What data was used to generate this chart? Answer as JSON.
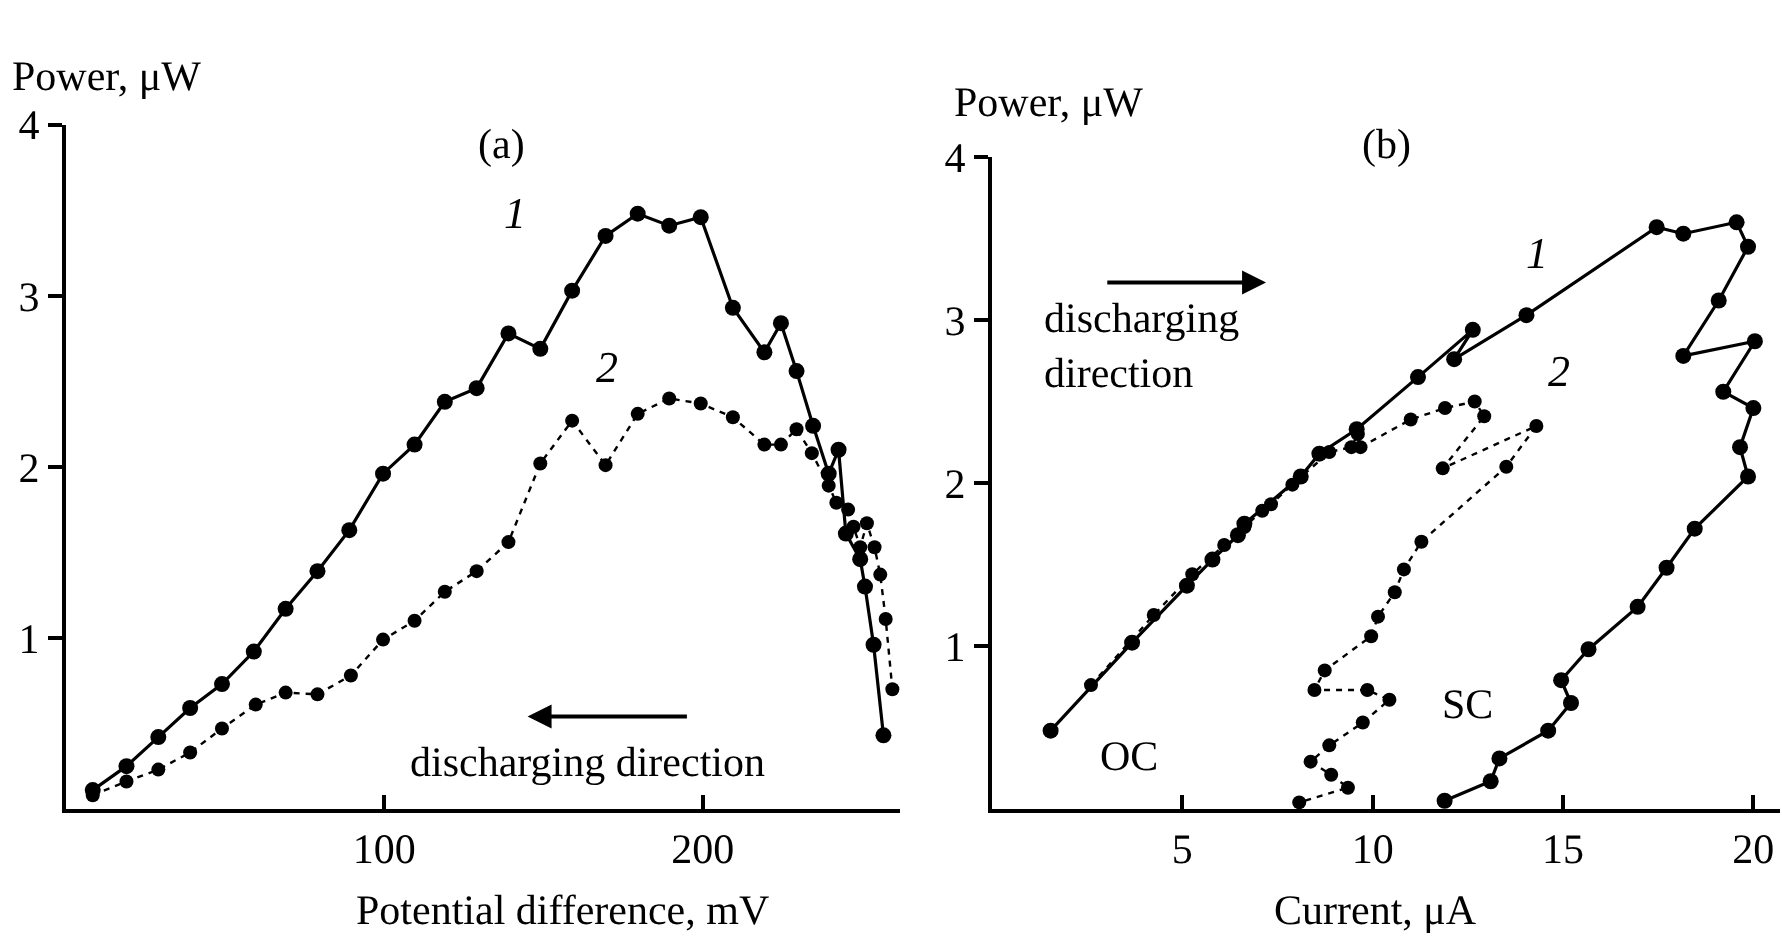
{
  "chart_data": [
    {
      "type": "line",
      "title": "(a)",
      "xlabel": "Potential difference, mV",
      "ylabel": "Power, μW",
      "xlim": [
        0,
        262
      ],
      "ylim": [
        0,
        4
      ],
      "xticks": [
        100,
        200
      ],
      "yticks": [
        1,
        2,
        3,
        4
      ],
      "grid": false,
      "marker": "circle",
      "annotations": [
        "discharging direction"
      ],
      "series": [
        {
          "name": "1",
          "color": "#000000",
          "line_style": "solid",
          "x": [
            8.4,
            19,
            29,
            39,
            49,
            59,
            69,
            79,
            89,
            99.6,
            109.5,
            119,
            129,
            139,
            149,
            159,
            169.5,
            179.6,
            189.5,
            199.4,
            209.5,
            219.4,
            224.6,
            229.5,
            234.7,
            239.6,
            242.7,
            245,
            249.5,
            251,
            253.7,
            256.8
          ],
          "values": [
            0.11,
            0.25,
            0.42,
            0.59,
            0.73,
            0.92,
            1.17,
            1.39,
            1.63,
            1.96,
            2.13,
            2.38,
            2.46,
            2.78,
            2.69,
            3.03,
            3.35,
            3.48,
            3.41,
            3.46,
            2.93,
            2.67,
            2.84,
            2.56,
            2.24,
            1.96,
            2.1,
            1.61,
            1.46,
            1.3,
            0.96,
            0.43
          ]
        },
        {
          "name": "2",
          "color": "#000000",
          "line_style": "dotted",
          "x": [
            8.4,
            19,
            29,
            39,
            49,
            59.6,
            69,
            79,
            89.5,
            99.6,
            109.5,
            119,
            129,
            139,
            149,
            159,
            169.5,
            179.6,
            189.5,
            199.4,
            209.5,
            219.4,
            224.6,
            229.5,
            234.3,
            239.6,
            242,
            245.7,
            247.4,
            249.5,
            251.6,
            254,
            255.8,
            257.5,
            259.6
          ],
          "values": [
            0.08,
            0.16,
            0.23,
            0.33,
            0.47,
            0.61,
            0.68,
            0.67,
            0.78,
            0.99,
            1.1,
            1.27,
            1.39,
            1.56,
            2.02,
            2.27,
            2.01,
            2.31,
            2.4,
            2.37,
            2.29,
            2.13,
            2.13,
            2.22,
            2.08,
            1.89,
            1.79,
            1.75,
            1.65,
            1.53,
            1.67,
            1.53,
            1.37,
            1.11,
            0.7
          ]
        }
      ]
    },
    {
      "type": "line",
      "title": "(b)",
      "xlabel": "Current, μA",
      "ylabel": "Power, μW",
      "xlim": [
        0,
        20.7
      ],
      "ylim": [
        0,
        4
      ],
      "xticks": [
        5,
        10,
        15,
        20
      ],
      "yticks": [
        1,
        2,
        3,
        4
      ],
      "grid": false,
      "marker": "circle",
      "annotations": [
        "discharging\ndirection",
        "OC",
        "SC"
      ],
      "series": [
        {
          "name": "1",
          "color": "#000000",
          "line_style": "solid",
          "x": [
            1.54,
            3.68,
            5.12,
            5.79,
            6.46,
            6.63,
            8.11,
            8.6,
            9.58,
            11.19,
            12.63,
            12.14,
            14.04,
            17.46,
            18.16,
            19.56,
            19.86,
            19.09,
            18.16,
            20.04,
            19.21,
            20.0,
            19.65,
            19.86,
            18.46,
            17.72,
            16.96,
            15.67,
            14.95,
            15.21,
            14.61,
            13.33,
            13.1,
            11.89
          ],
          "values": [
            0.48,
            1.02,
            1.37,
            1.53,
            1.68,
            1.75,
            2.04,
            2.18,
            2.33,
            2.65,
            2.94,
            2.76,
            3.03,
            3.57,
            3.53,
            3.6,
            3.45,
            3.12,
            2.78,
            2.87,
            2.56,
            2.46,
            2.22,
            2.04,
            1.72,
            1.48,
            1.24,
            0.98,
            0.79,
            0.65,
            0.48,
            0.31,
            0.17,
            0.05
          ]
        },
        {
          "name": "2",
          "color": "#000000",
          "line_style": "dotted",
          "x": [
            2.6,
            4.25,
            5.26,
            6.1,
            6.63,
            7.1,
            7.33,
            7.89,
            8.86,
            9.44,
            9.61,
            9.68,
            11.0,
            11.9,
            12.68,
            12.93,
            11.84,
            14.3,
            13.51,
            11.28,
            10.82,
            10.58,
            10.14,
            9.96,
            8.74,
            8.47,
            9.86,
            10.44,
            9.74,
            8.86,
            8.37,
            8.91,
            9.35,
            8.07
          ],
          "values": [
            0.76,
            1.19,
            1.44,
            1.62,
            1.73,
            1.83,
            1.87,
            1.99,
            2.19,
            2.22,
            2.3,
            2.22,
            2.39,
            2.46,
            2.5,
            2.41,
            2.09,
            2.35,
            2.1,
            1.64,
            1.47,
            1.33,
            1.18,
            1.06,
            0.85,
            0.73,
            0.73,
            0.67,
            0.53,
            0.39,
            0.29,
            0.21,
            0.13,
            0.04
          ]
        }
      ]
    }
  ]
}
